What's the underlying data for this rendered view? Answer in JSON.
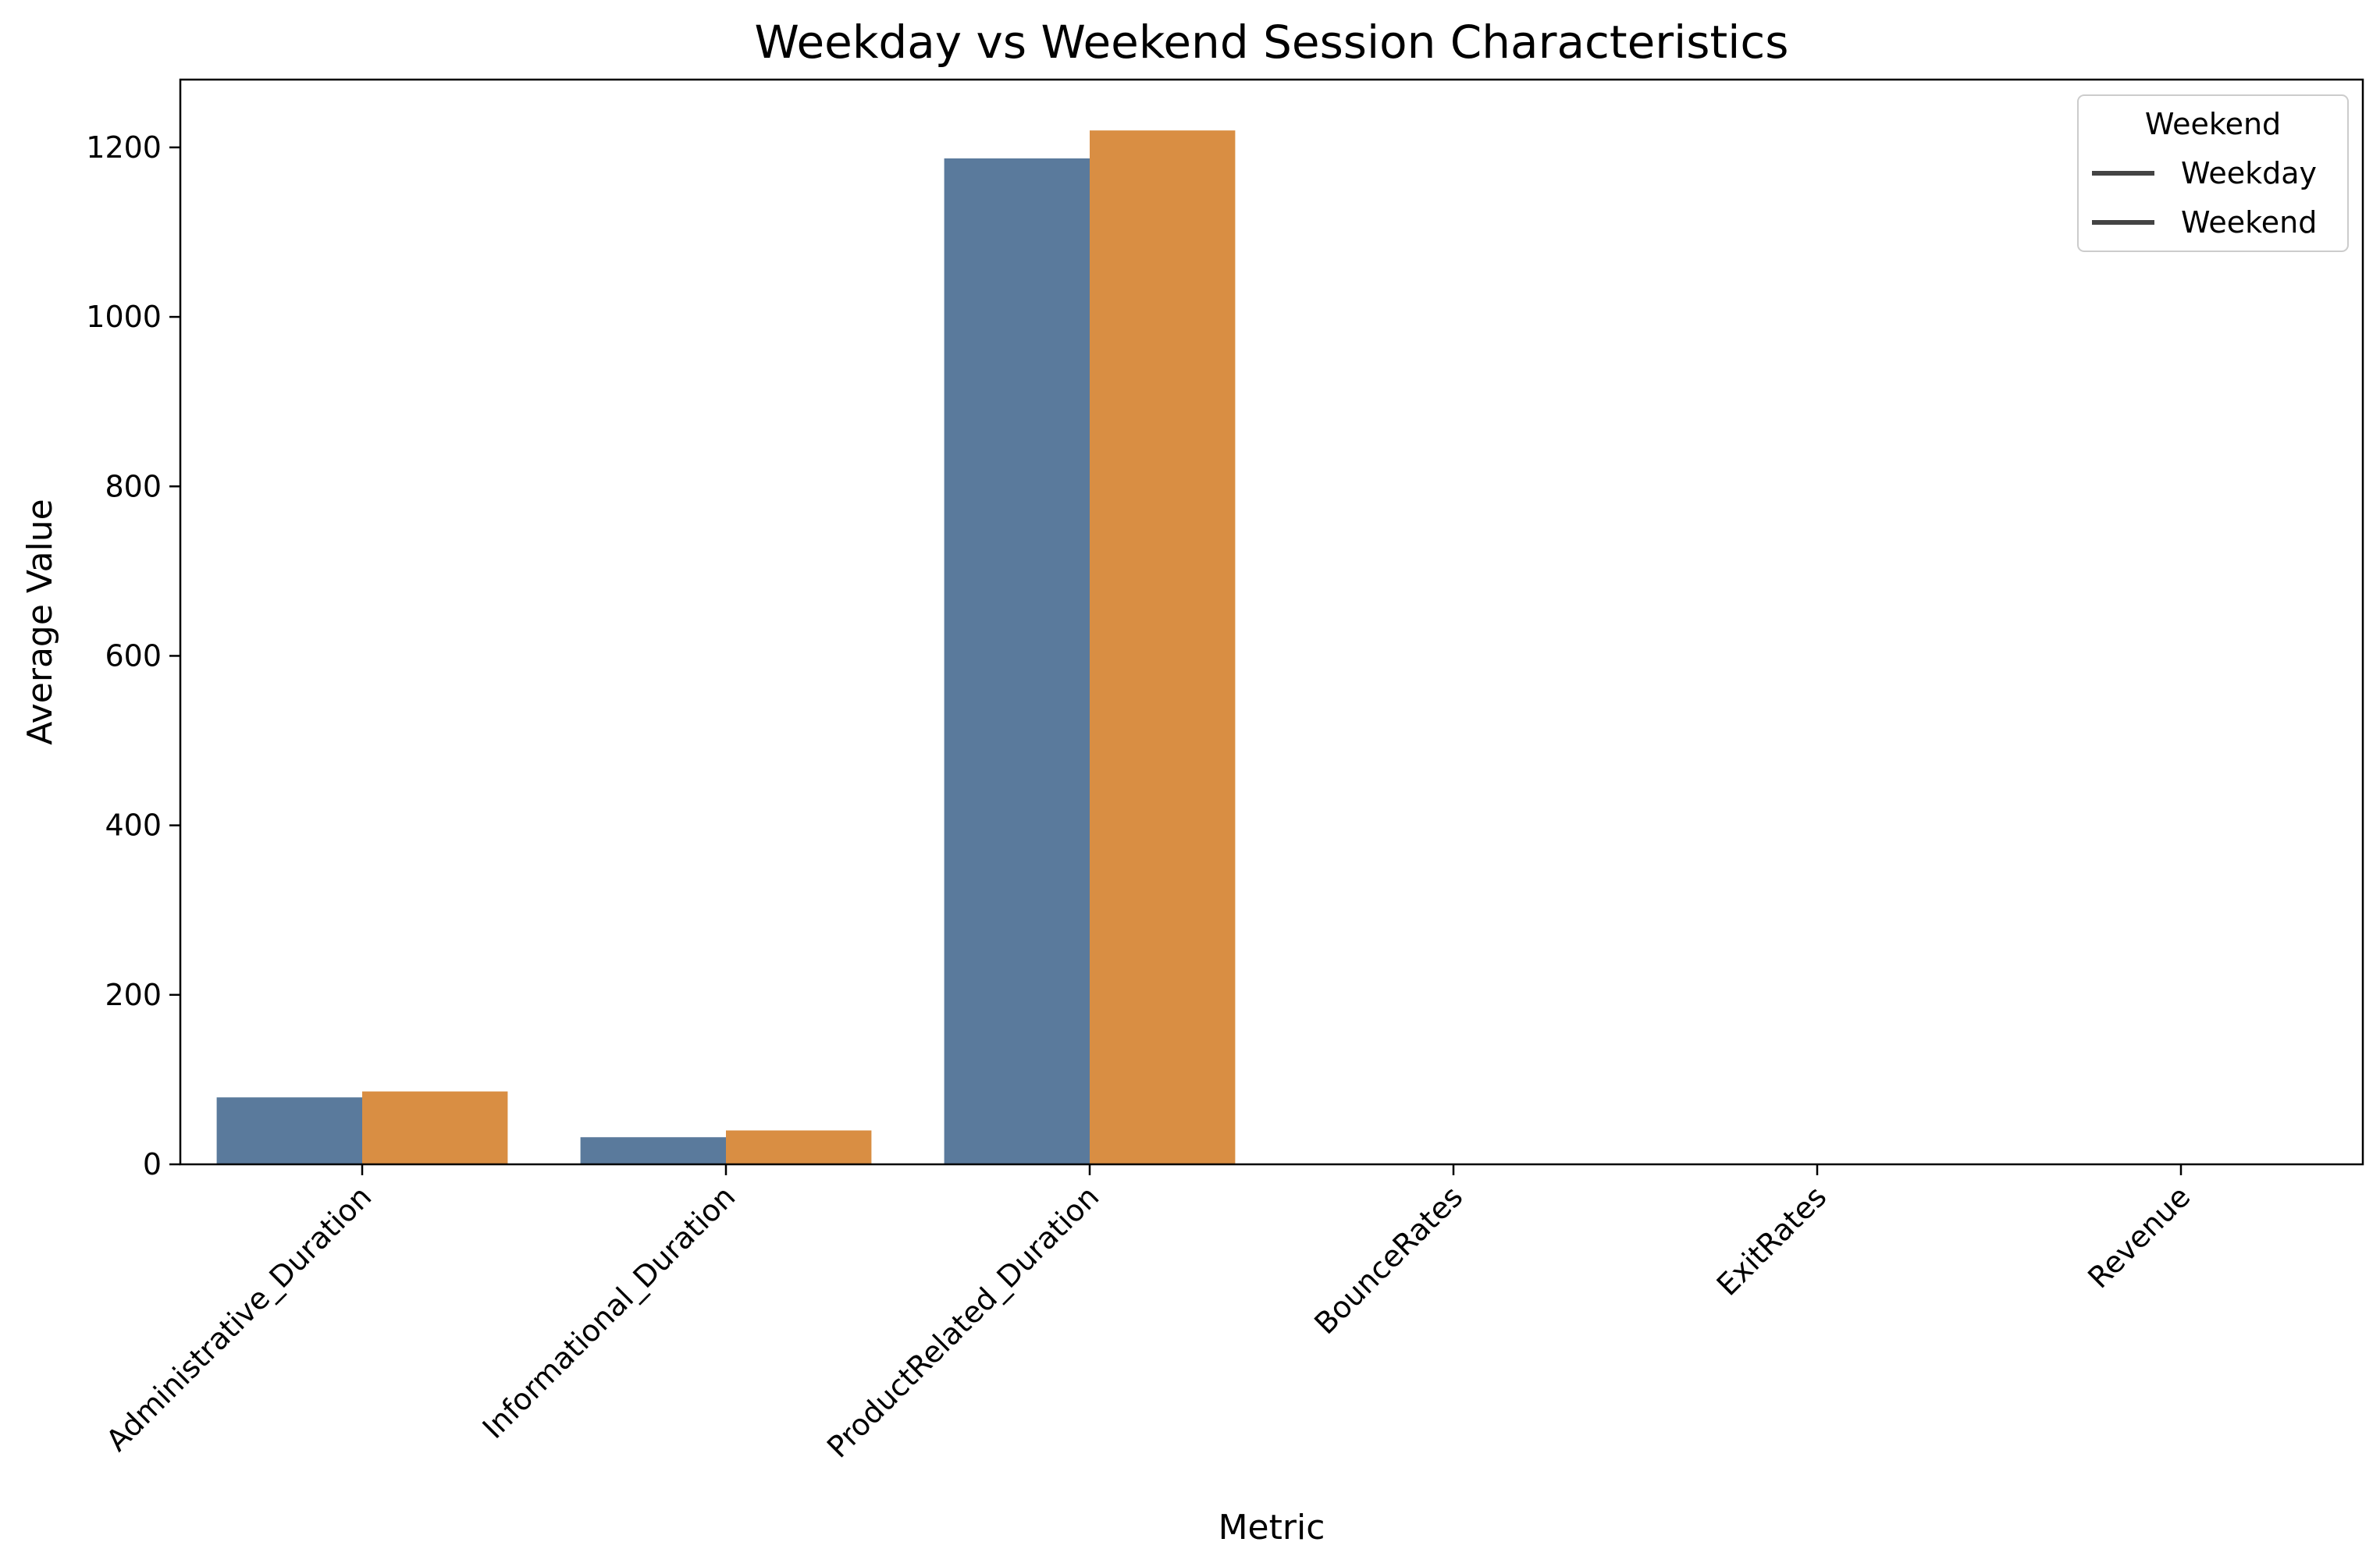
{
  "chart_data": {
    "type": "bar",
    "title": "Weekday vs Weekend Session Characteristics",
    "xlabel": "Metric",
    "ylabel": "Average Value",
    "categories": [
      "Administrative_Duration",
      "Informational_Duration",
      "ProductRelated_Duration",
      "BounceRates",
      "ExitRates",
      "Revenue"
    ],
    "series": [
      {
        "name": "Weekday",
        "color": "#5a7a9c",
        "values": [
          79,
          32,
          1187,
          0.02,
          0.04,
          0.15
        ]
      },
      {
        "name": "Weekend",
        "color": "#d98e43",
        "values": [
          86,
          40,
          1220,
          0.02,
          0.04,
          0.17
        ]
      }
    ],
    "ylim": [
      0,
      1280
    ],
    "yticks": [
      0,
      200,
      400,
      600,
      800,
      1000,
      1200
    ],
    "grid": false,
    "legend": {
      "title": "Weekend",
      "placement": "top-right",
      "entries": [
        "Weekday",
        "Weekend"
      ]
    }
  }
}
